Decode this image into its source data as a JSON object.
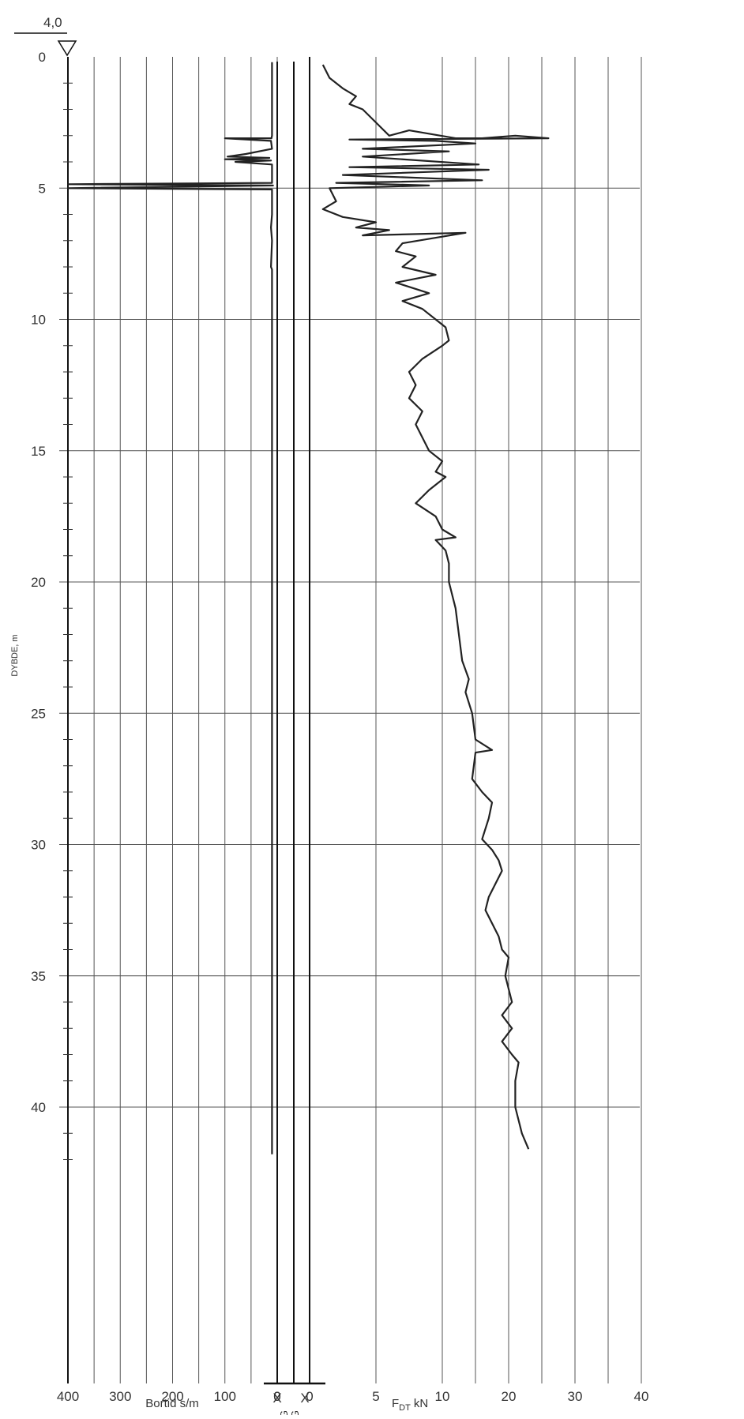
{
  "chart_data": {
    "type": "line",
    "ylabel": "DYBDE, m",
    "y_axis": {
      "range": [
        0,
        43
      ],
      "ticks": [
        0,
        5,
        10,
        15,
        20,
        25,
        30,
        35,
        40
      ],
      "tick_labels": [
        "0",
        "5",
        "10",
        "15",
        "20",
        "25",
        "30",
        "35",
        "40"
      ],
      "inverted": true
    },
    "header": {
      "ground_level": "4,0"
    },
    "left_panel": {
      "xlabel": "Bortid s/m",
      "x_ticks": [
        400,
        300,
        200,
        100,
        0
      ],
      "x_tick_labels": [
        "400",
        "300",
        "200",
        "100",
        "0"
      ],
      "x_reversed": true
    },
    "middle_panel": {
      "columns": [
        "SPYLING",
        "SLAG"
      ],
      "zero_labels": [
        "0",
        "0"
      ],
      "markers": [
        {
          "column": "SPYLING",
          "symbol": "X",
          "depth": 42
        },
        {
          "column": "SLAG",
          "symbol": "X",
          "depth": 42
        }
      ]
    },
    "right_panel": {
      "xlabel": "F",
      "xlabel_subscript": "DT",
      "xlabel_unit": "kN",
      "x_ticks": [
        0,
        5,
        10,
        20,
        30,
        40
      ],
      "x_tick_labels": [
        "0",
        "5",
        "10",
        "20",
        "30",
        "40"
      ]
    },
    "series": [
      {
        "panel": "left_panel",
        "x_units": "s/m",
        "points": [
          [
            10,
            0.2
          ],
          [
            10,
            3.0
          ],
          [
            11,
            3.1
          ],
          [
            100,
            3.1
          ],
          [
            12,
            3.2
          ],
          [
            10,
            3.5
          ],
          [
            60,
            3.7
          ],
          [
            95,
            3.8
          ],
          [
            15,
            3.85
          ],
          [
            100,
            3.9
          ],
          [
            12,
            3.95
          ],
          [
            80,
            4.0
          ],
          [
            10,
            4.1
          ],
          [
            10,
            4.8
          ],
          [
            400,
            4.85
          ],
          [
            8,
            4.9
          ],
          [
            400,
            5.0
          ],
          [
            10,
            5.05
          ],
          [
            10,
            6.0
          ],
          [
            12,
            6.5
          ],
          [
            10,
            7.0
          ],
          [
            12,
            8.0
          ],
          [
            10,
            8.1
          ],
          [
            10,
            41.8
          ]
        ]
      },
      {
        "panel": "right_panel",
        "x_units": "kN",
        "points": [
          [
            1.0,
            0.3
          ],
          [
            1.5,
            0.8
          ],
          [
            2.5,
            1.2
          ],
          [
            3.5,
            1.5
          ],
          [
            3.0,
            1.8
          ],
          [
            4.0,
            2.0
          ],
          [
            5.0,
            2.5
          ],
          [
            6.0,
            3.0
          ],
          [
            7.5,
            2.8
          ],
          [
            12.0,
            3.1
          ],
          [
            16.0,
            3.1
          ],
          [
            21.0,
            3.0
          ],
          [
            26.0,
            3.1
          ],
          [
            3.0,
            3.15
          ],
          [
            9.5,
            3.2
          ],
          [
            15.0,
            3.3
          ],
          [
            4.0,
            3.5
          ],
          [
            11.0,
            3.6
          ],
          [
            4.0,
            3.8
          ],
          [
            15.5,
            4.1
          ],
          [
            3.0,
            4.2
          ],
          [
            17.0,
            4.3
          ],
          [
            2.5,
            4.5
          ],
          [
            16.0,
            4.7
          ],
          [
            2.0,
            4.8
          ],
          [
            9.0,
            4.9
          ],
          [
            1.5,
            5.0
          ],
          [
            2.0,
            5.5
          ],
          [
            1.0,
            5.8
          ],
          [
            2.5,
            6.1
          ],
          [
            5.0,
            6.3
          ],
          [
            3.5,
            6.5
          ],
          [
            6.0,
            6.6
          ],
          [
            4.0,
            6.8
          ],
          [
            13.5,
            6.7
          ],
          [
            7.0,
            7.1
          ],
          [
            6.5,
            7.4
          ],
          [
            8.0,
            7.6
          ],
          [
            7.0,
            8.0
          ],
          [
            9.5,
            8.3
          ],
          [
            6.5,
            8.6
          ],
          [
            9.0,
            9.0
          ],
          [
            7.0,
            9.3
          ],
          [
            8.5,
            9.6
          ],
          [
            9.5,
            10.0
          ],
          [
            10.5,
            10.3
          ],
          [
            11.0,
            10.8
          ],
          [
            10.0,
            11.0
          ],
          [
            8.5,
            11.5
          ],
          [
            7.5,
            12.0
          ],
          [
            8.0,
            12.5
          ],
          [
            7.5,
            13.0
          ],
          [
            8.5,
            13.5
          ],
          [
            8.0,
            14.0
          ],
          [
            8.5,
            14.5
          ],
          [
            9.0,
            15.0
          ],
          [
            10.0,
            15.4
          ],
          [
            9.5,
            15.8
          ],
          [
            10.5,
            16.0
          ],
          [
            9.0,
            16.5
          ],
          [
            8.0,
            17.0
          ],
          [
            9.5,
            17.5
          ],
          [
            10.0,
            18.0
          ],
          [
            12.0,
            18.3
          ],
          [
            9.5,
            18.4
          ],
          [
            10.5,
            18.8
          ],
          [
            11.0,
            19.3
          ],
          [
            11.0,
            20.0
          ],
          [
            12.0,
            21.0
          ],
          [
            12.5,
            22.0
          ],
          [
            13.0,
            23.0
          ],
          [
            14.0,
            23.7
          ],
          [
            13.5,
            24.2
          ],
          [
            14.5,
            25.0
          ],
          [
            15.0,
            26.0
          ],
          [
            17.5,
            26.4
          ],
          [
            15.0,
            26.5
          ],
          [
            14.5,
            27.5
          ],
          [
            16.0,
            28.0
          ],
          [
            17.5,
            28.4
          ],
          [
            17.0,
            29.0
          ],
          [
            16.0,
            29.8
          ],
          [
            17.5,
            30.2
          ],
          [
            18.5,
            30.6
          ],
          [
            19.0,
            31.0
          ],
          [
            18.0,
            31.5
          ],
          [
            17.0,
            32.0
          ],
          [
            16.5,
            32.5
          ],
          [
            17.5,
            33.0
          ],
          [
            18.5,
            33.5
          ],
          [
            19.0,
            34.0
          ],
          [
            20.0,
            34.3
          ],
          [
            19.5,
            35.0
          ],
          [
            20.0,
            35.5
          ],
          [
            20.5,
            36.0
          ],
          [
            19.0,
            36.5
          ],
          [
            20.5,
            37.0
          ],
          [
            19.0,
            37.5
          ],
          [
            20.5,
            38.0
          ],
          [
            21.5,
            38.3
          ],
          [
            21.0,
            39.0
          ],
          [
            21.0,
            40.0
          ],
          [
            21.5,
            40.5
          ],
          [
            22.0,
            41.0
          ],
          [
            23.0,
            41.6
          ]
        ]
      }
    ]
  }
}
